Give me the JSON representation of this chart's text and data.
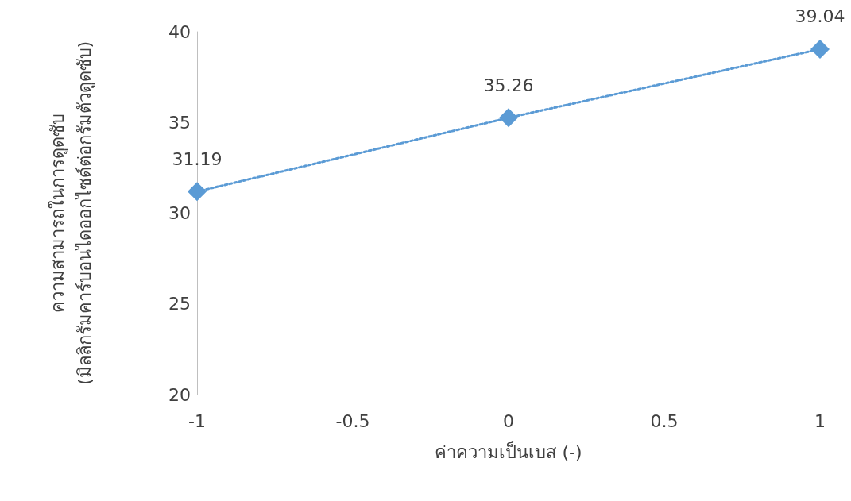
{
  "chart_data": {
    "type": "line",
    "xlabel": "ค่าความเป็นเบส (-)",
    "ylabel": "ความสามารถในการดูดซับ\n(มิลลิกรัมคาร์บอนไดออกไซด์ต่อกรัมตัวดูดซับ)",
    "x": [
      -1,
      0,
      1
    ],
    "series": [
      {
        "color": "#5b9bd5",
        "values": [
          31.19,
          35.26,
          39.04
        ]
      }
    ],
    "xlim": [
      -1,
      1
    ],
    "xticks": [
      -1,
      -0.5,
      0,
      0.5,
      1
    ],
    "ylim": [
      20,
      40
    ],
    "yticks": [
      20,
      25,
      30,
      35,
      40
    ],
    "grid": false,
    "marker": "diamond",
    "line_style": "dotted",
    "data_labels": true
  }
}
